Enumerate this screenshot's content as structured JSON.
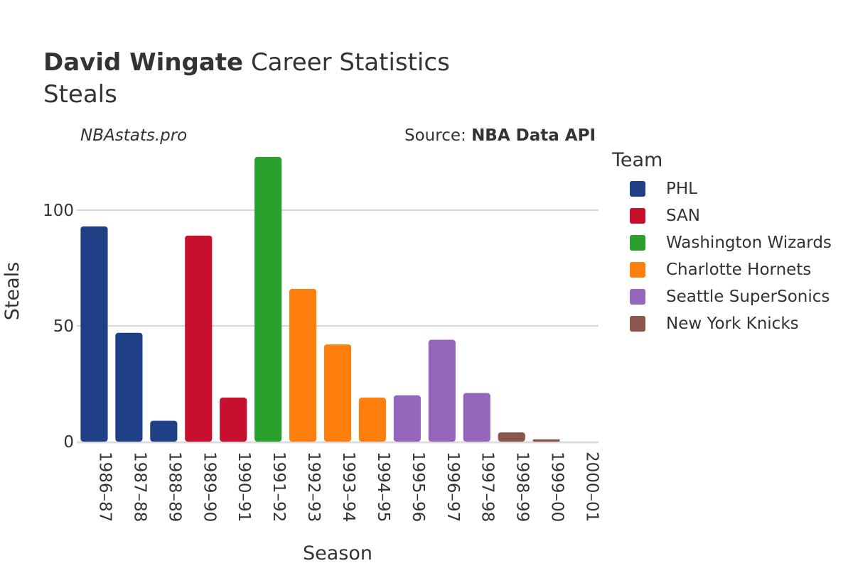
{
  "header": {
    "player": "David Wingate",
    "title_rest": "Career Statistics",
    "subtitle": "Steals"
  },
  "brand": "NBAstats.pro",
  "source": {
    "prefix": "Source: ",
    "name": "NBA Data API"
  },
  "legend": {
    "title": "Team",
    "items": [
      {
        "label": "PHL",
        "color": "#1f3f86"
      },
      {
        "label": "SAN",
        "color": "#c8102e"
      },
      {
        "label": "Washington Wizards",
        "color": "#2ca02c"
      },
      {
        "label": "Charlotte Hornets",
        "color": "#ff7f0e"
      },
      {
        "label": "Seattle SuperSonics",
        "color": "#9467bd"
      },
      {
        "label": "New York Knicks",
        "color": "#8c564b"
      }
    ]
  },
  "chart_data": {
    "type": "bar",
    "xlabel": "Season",
    "ylabel": "Steals",
    "ylim": [
      0,
      125
    ],
    "yticks": [
      0,
      50,
      100
    ],
    "grid": true,
    "legend_position": "right",
    "categories": [
      "1986–87",
      "1987–88",
      "1988–89",
      "1989–90",
      "1990–91",
      "1991–92",
      "1992–93",
      "1993–94",
      "1994–95",
      "1995–96",
      "1996–97",
      "1997–98",
      "1998–99",
      "1999–00",
      "2000–01"
    ],
    "values": [
      93,
      47,
      9,
      89,
      19,
      123,
      66,
      42,
      19,
      20,
      44,
      21,
      4,
      1,
      0
    ],
    "teams": [
      "PHL",
      "PHL",
      "PHL",
      "SAN",
      "SAN",
      "Washington Wizards",
      "Charlotte Hornets",
      "Charlotte Hornets",
      "Charlotte Hornets",
      "Seattle SuperSonics",
      "Seattle SuperSonics",
      "Seattle SuperSonics",
      "New York Knicks",
      "New York Knicks",
      "New York Knicks"
    ]
  }
}
